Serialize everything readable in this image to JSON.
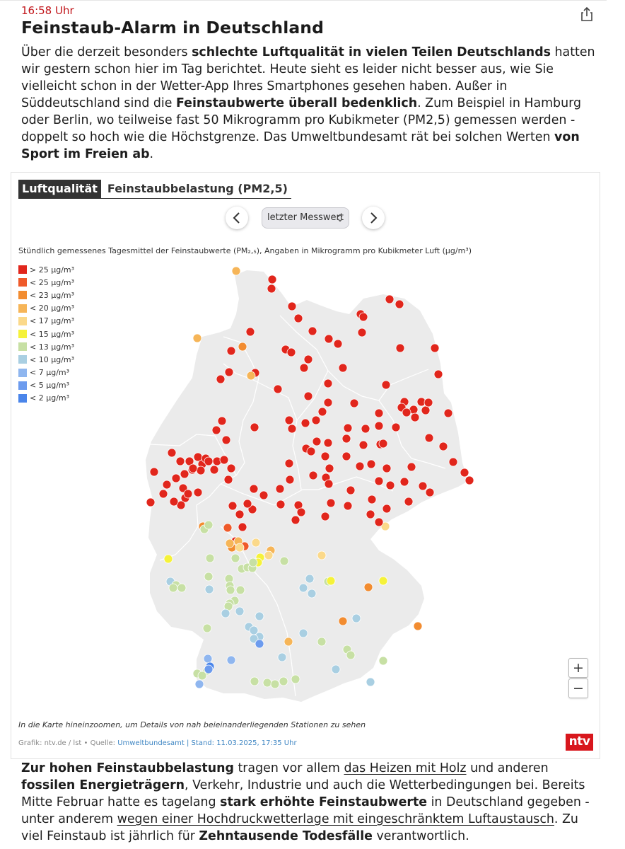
{
  "article": {
    "time": "16:58 Uhr",
    "headline": "Feinstaub-Alarm in Deutschland",
    "intro": [
      {
        "t": "Über die derzeit besonders "
      },
      {
        "t": "schlechte Luftqualität in vielen Teilen Deutschlands",
        "b": true
      },
      {
        "t": " hatten wir gestern schon hier im Tag berichtet. Heute sieht es leider nicht besser aus, wie Sie vielleicht schon in der Wetter-App Ihres Smartphones gesehen haben. Außer in Süddeutschland sind die "
      },
      {
        "t": "Feinstaubwerte überall bedenklich",
        "b": true
      },
      {
        "t": ". Zum Beispiel in Hamburg oder Berlin, wo teilweise fast 50 Mikrogramm pro Kubikmeter (PM2,5) gemessen werden - doppelt so hoch wie die Höchstgrenze. Das Umweltbundesamt rät bei solchen Werten "
      },
      {
        "t": "von Sport im Freien ab",
        "b": true
      },
      {
        "t": "."
      }
    ],
    "outro": [
      {
        "t": "Zur hohen Feinstaubbelastung",
        "b": true
      },
      {
        "t": " tragen vor allem "
      },
      {
        "t": "das Heizen mit Holz",
        "link": true
      },
      {
        "t": " und anderen "
      },
      {
        "t": "fossilen Energieträgern",
        "b": true
      },
      {
        "t": ", Verkehr, Industrie und auch die Wetterbedingungen bei. Bereits Mitte Februar hatte es tagelang "
      },
      {
        "t": "stark erhöhte Feinstaubwerte",
        "b": true
      },
      {
        "t": " in Deutschland gegeben - unter anderem "
      },
      {
        "t": "wegen einer Hochdruckwetterlage mit eingeschränktem Luftaustausch",
        "link": true
      },
      {
        "t": ". Zu viel Feinstaub ist jährlich für "
      },
      {
        "t": "Zehntausende Todesfälle",
        "b": true
      },
      {
        "t": " verantwortlich."
      }
    ]
  },
  "widget": {
    "tabs": {
      "active": "Luftqualität",
      "inactive": "Feinstaubbelastung (PM2,5)"
    },
    "selector": {
      "value": "letzter Messwert"
    },
    "subtitle": "Stündlich gemessenes Tagesmittel der Feinstaubwerte (PM₂,₅), Angaben in Mikrogramm pro Kubikmeter Luft (µg/m³)",
    "legend": [
      {
        "label": "> 25 µg/m³",
        "color": "#e1261c"
      },
      {
        "label": "< 25 µg/m³",
        "color": "#ef5a2a"
      },
      {
        "label": "< 23 µg/m³",
        "color": "#f28c30"
      },
      {
        "label": "< 20 µg/m³",
        "color": "#f6b558"
      },
      {
        "label": "< 17 µg/m³",
        "color": "#fbd98a"
      },
      {
        "label": "< 15 µg/m³",
        "color": "#f5f23a"
      },
      {
        "label": "< 13 µg/m³",
        "color": "#c7e0a4"
      },
      {
        "label": "< 10 µg/m³",
        "color": "#a9cfe2"
      },
      {
        "label": "< 7 µg/m³",
        "color": "#8fb6ef"
      },
      {
        "label": "< 5 µg/m³",
        "color": "#6c9bee"
      },
      {
        "label": "< 2 µg/m³",
        "color": "#4a85ea"
      }
    ],
    "zoom": {
      "in": "+",
      "out": "−"
    },
    "hint": "In die Karte hineinzoomen, um Details von nah beieinanderliegenden Stationen zu sehen",
    "credits": {
      "prefix": "Grafik: ntv.de / lst • Quelle: ",
      "source": "Umweltbundesamt | Stand: 11.03.2025, 17:35 Uhr"
    },
    "logo": "ntv"
  }
}
